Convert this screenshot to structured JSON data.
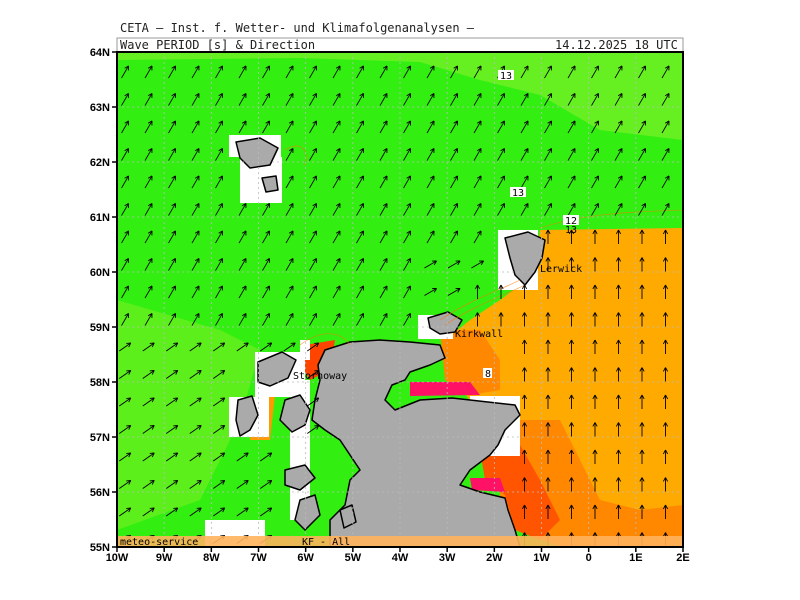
{
  "header": {
    "institute": "CETA – Inst. f. Wetter- und Klimafolgenanalysen –",
    "product": "Wave PERIOD [s] & Direction",
    "valid_time": "14.12.2025 18 UTC"
  },
  "map": {
    "lat_labels": [
      "64N",
      "63N",
      "62N",
      "61N",
      "60N",
      "59N",
      "58N",
      "57N",
      "56N",
      "55N"
    ],
    "lon_labels": [
      "10W",
      "9W",
      "8W",
      "7W",
      "6W",
      "5W",
      "4W",
      "3W",
      "2W",
      "1W",
      "0",
      "1E",
      "2E"
    ],
    "lat_range": [
      55,
      64
    ],
    "lon_range": [
      -10,
      2
    ],
    "contour_labels": [
      "13",
      "13",
      "12",
      "13",
      "8"
    ],
    "place_labels": [
      "Lerwick",
      "Kirkwall",
      "Stornoway"
    ],
    "footer_left": "meteo-service",
    "footer_right": "KF - All"
  },
  "colors": {
    "sea_green": "#33ee11",
    "sea_light_green": "#66f022",
    "sea_orange": "#ffaa00",
    "sea_dark_orange": "#ff8800",
    "sea_red": "#ff4400",
    "sea_magenta": "#ff0066",
    "land_gray": "#aaaaaa"
  }
}
